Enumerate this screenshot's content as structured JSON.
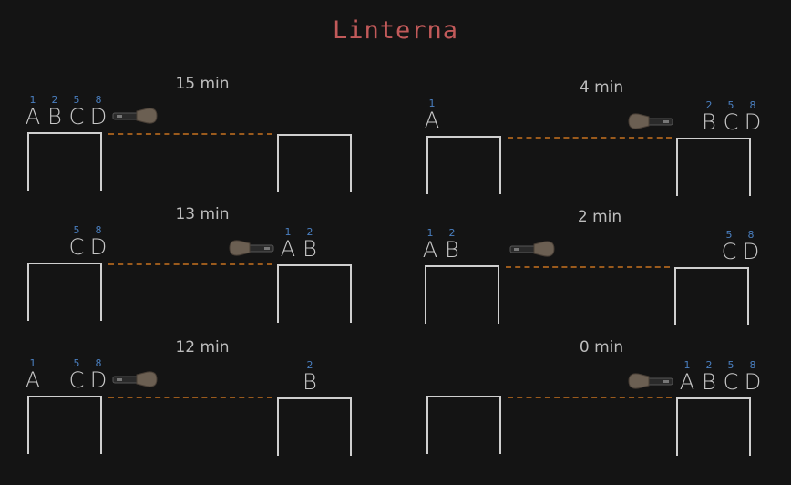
{
  "title": "Linterna",
  "colors": {
    "title": "#c25a5a",
    "number": "#4a7fc0",
    "river": "#9a5a1c",
    "bank": "#cfcfcf"
  },
  "people": [
    {
      "letter": "A",
      "num": "1"
    },
    {
      "letter": "B",
      "num": "2"
    },
    {
      "letter": "C",
      "num": "5"
    },
    {
      "letter": "D",
      "num": "8"
    }
  ],
  "steps": [
    {
      "time": "15 min",
      "left": [
        "A",
        "B",
        "C",
        "D"
      ],
      "right": [],
      "torch": "left"
    },
    {
      "time": "4 min",
      "left": [
        "A"
      ],
      "right": [
        "B",
        "C",
        "D"
      ],
      "torch": "right"
    },
    {
      "time": "13 min",
      "left": [
        "C",
        "D"
      ],
      "right": [
        "A",
        "B"
      ],
      "torch": "right"
    },
    {
      "time": "2 min",
      "left": [
        "A",
        "B"
      ],
      "right": [
        "C",
        "D"
      ],
      "torch": "left"
    },
    {
      "time": "12 min",
      "left": [
        "A",
        "C",
        "D"
      ],
      "right": [
        "B"
      ],
      "torch": "left"
    },
    {
      "time": "0 min",
      "left": [],
      "right": [
        "A",
        "B",
        "C",
        "D"
      ],
      "torch": "right"
    }
  ]
}
